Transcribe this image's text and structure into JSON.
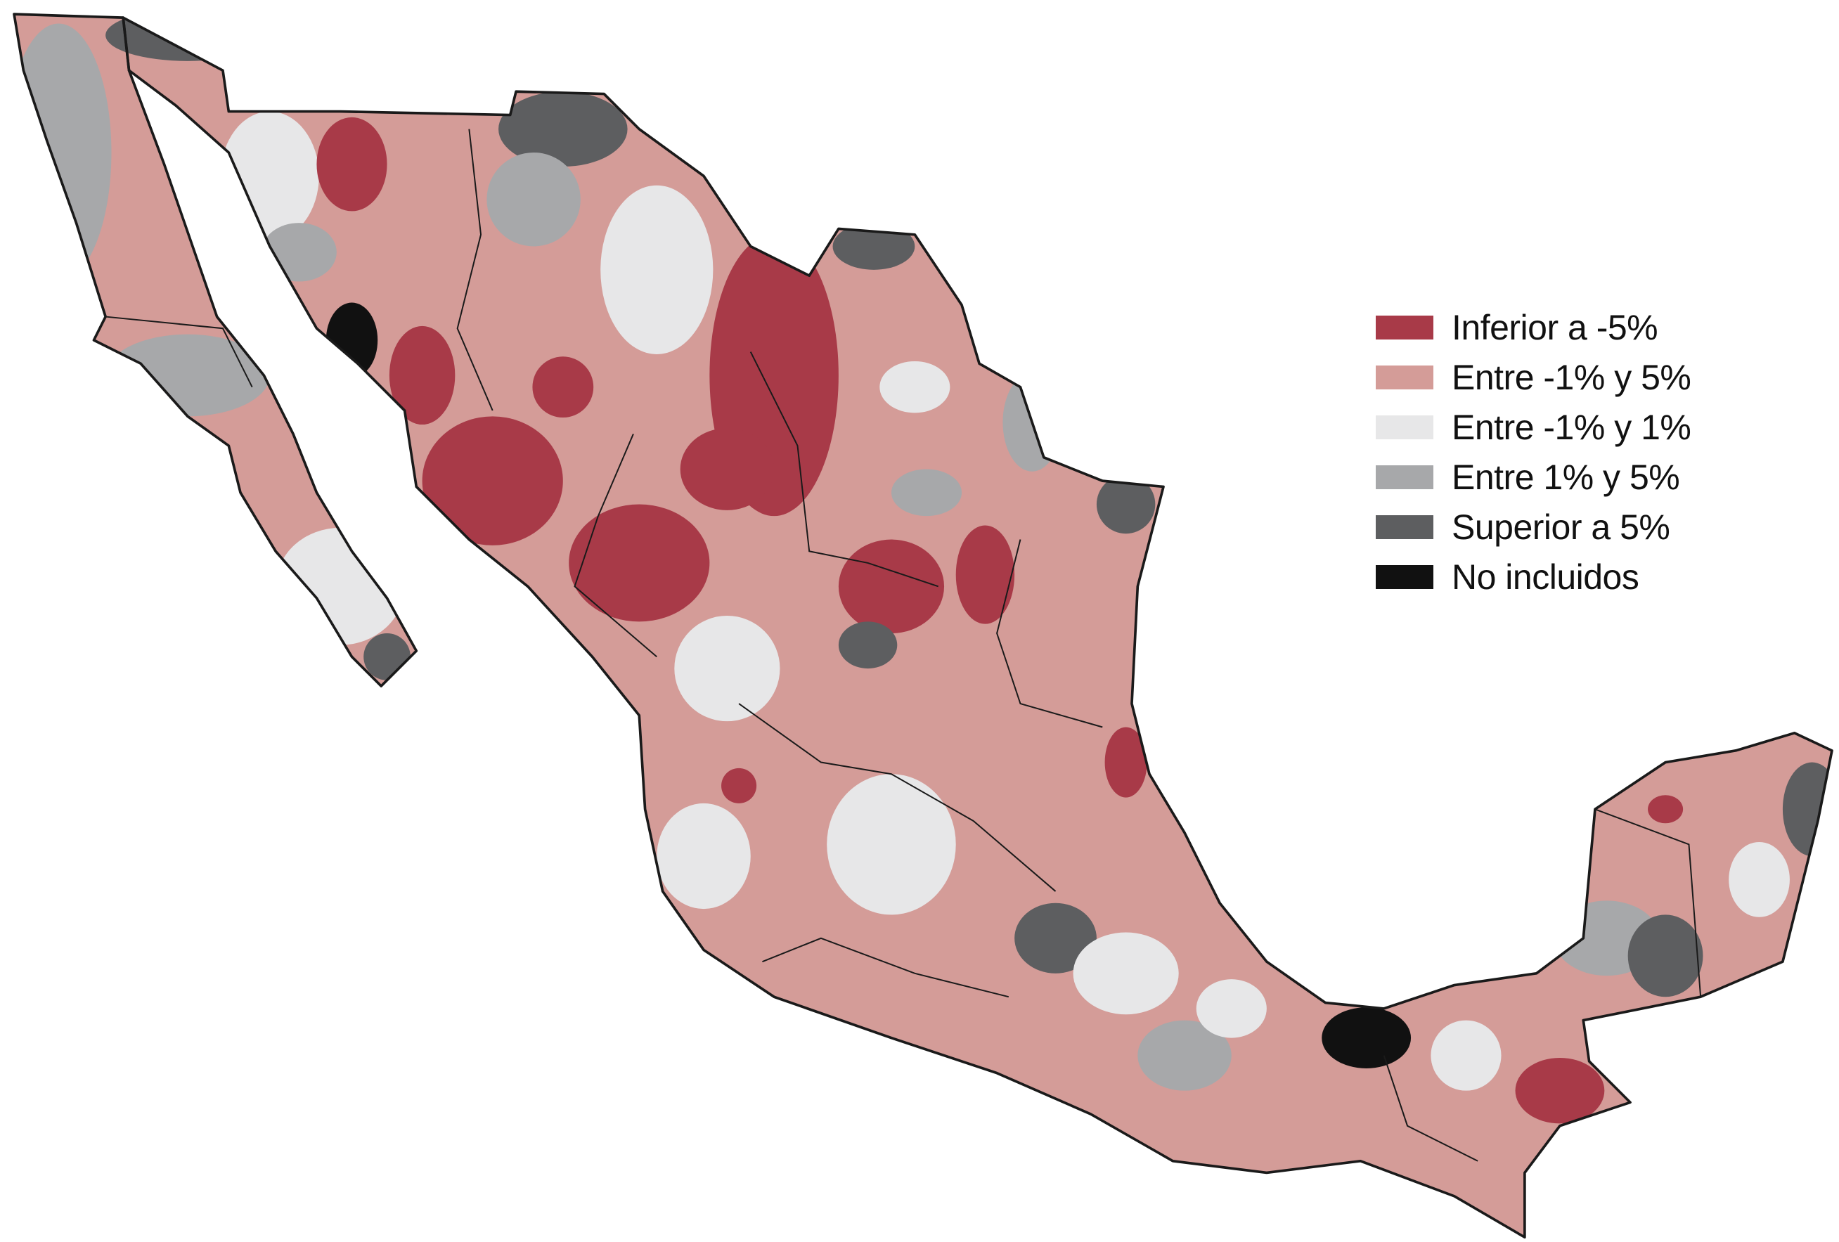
{
  "legend": {
    "items": [
      {
        "label": "Inferior a -5%",
        "color": "#a83a48"
      },
      {
        "label": "Entre -1% y 5%",
        "color": "#d49c98"
      },
      {
        "label": "Entre -1% y 1%",
        "color": "#e7e7e8"
      },
      {
        "label": "Entre 1% y 5%",
        "color": "#a7a8aa"
      },
      {
        "label": "Superior a 5%",
        "color": "#5d5e60"
      },
      {
        "label": "No incluidos",
        "color": "#111111"
      }
    ]
  }
}
